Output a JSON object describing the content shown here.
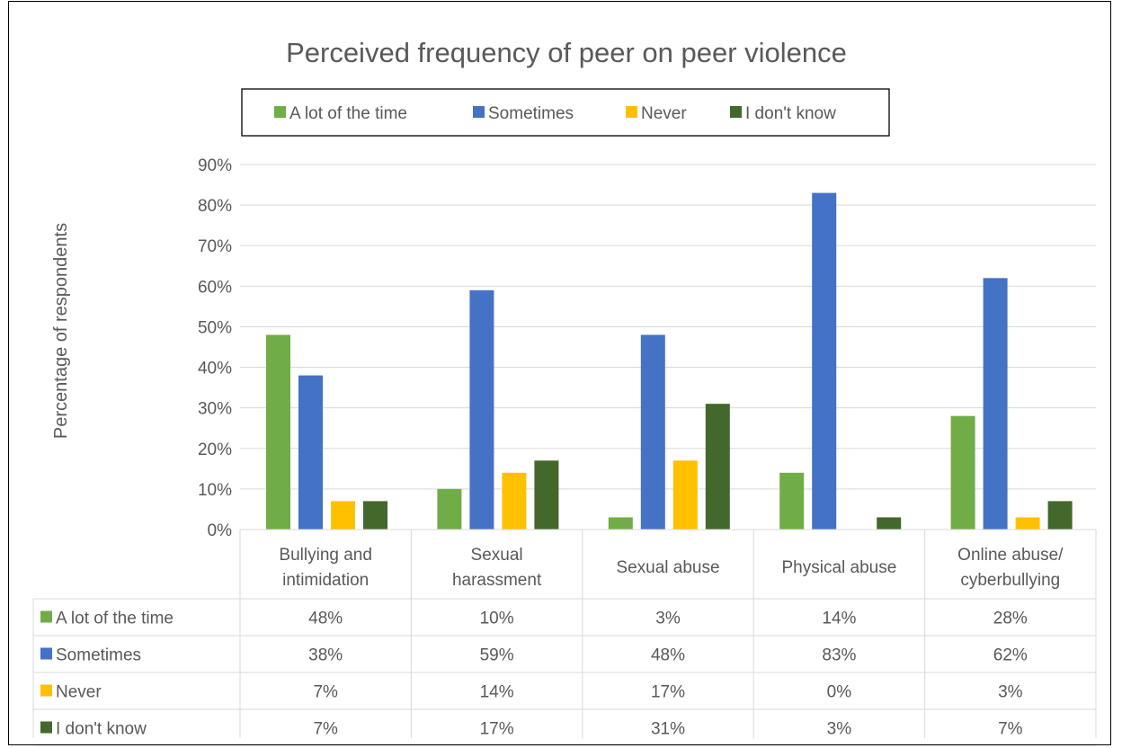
{
  "chart_data": {
    "type": "bar",
    "title": "Perceived frequency of peer on peer violence",
    "ylabel": "Percentage of respondents",
    "xlabel": "",
    "ylim": [
      0,
      90
    ],
    "y_ticks": [
      0,
      10,
      20,
      30,
      40,
      50,
      60,
      70,
      80,
      90
    ],
    "y_tick_labels": [
      "0%",
      "10%",
      "20%",
      "30%",
      "40%",
      "50%",
      "60%",
      "70%",
      "80%",
      "90%"
    ],
    "grid": true,
    "legend_position": "top",
    "data_table": true,
    "categories": [
      [
        "Bullying and",
        "intimidation"
      ],
      [
        "Sexual",
        "harassment"
      ],
      [
        "Sexual abuse"
      ],
      [
        "Physical abuse"
      ],
      [
        "Online abuse/",
        "cyberbullying"
      ]
    ],
    "series": [
      {
        "name": "A lot of the time",
        "color": "#70ad47",
        "values": [
          48,
          10,
          3,
          14,
          28
        ],
        "labels": [
          "48%",
          "10%",
          "3%",
          "14%",
          "28%"
        ]
      },
      {
        "name": "Sometimes",
        "color": "#4472c4",
        "values": [
          38,
          59,
          48,
          83,
          62
        ],
        "labels": [
          "38%",
          "59%",
          "48%",
          "83%",
          "62%"
        ]
      },
      {
        "name": "Never",
        "color": "#ffc000",
        "values": [
          7,
          14,
          17,
          0,
          3
        ],
        "labels": [
          "7%",
          "14%",
          "17%",
          "0%",
          "3%"
        ]
      },
      {
        "name": "I don't know",
        "color": "#43682b",
        "values": [
          7,
          17,
          31,
          3,
          7
        ],
        "labels": [
          "7%",
          "17%",
          "31%",
          "3%",
          "7%"
        ]
      }
    ]
  }
}
